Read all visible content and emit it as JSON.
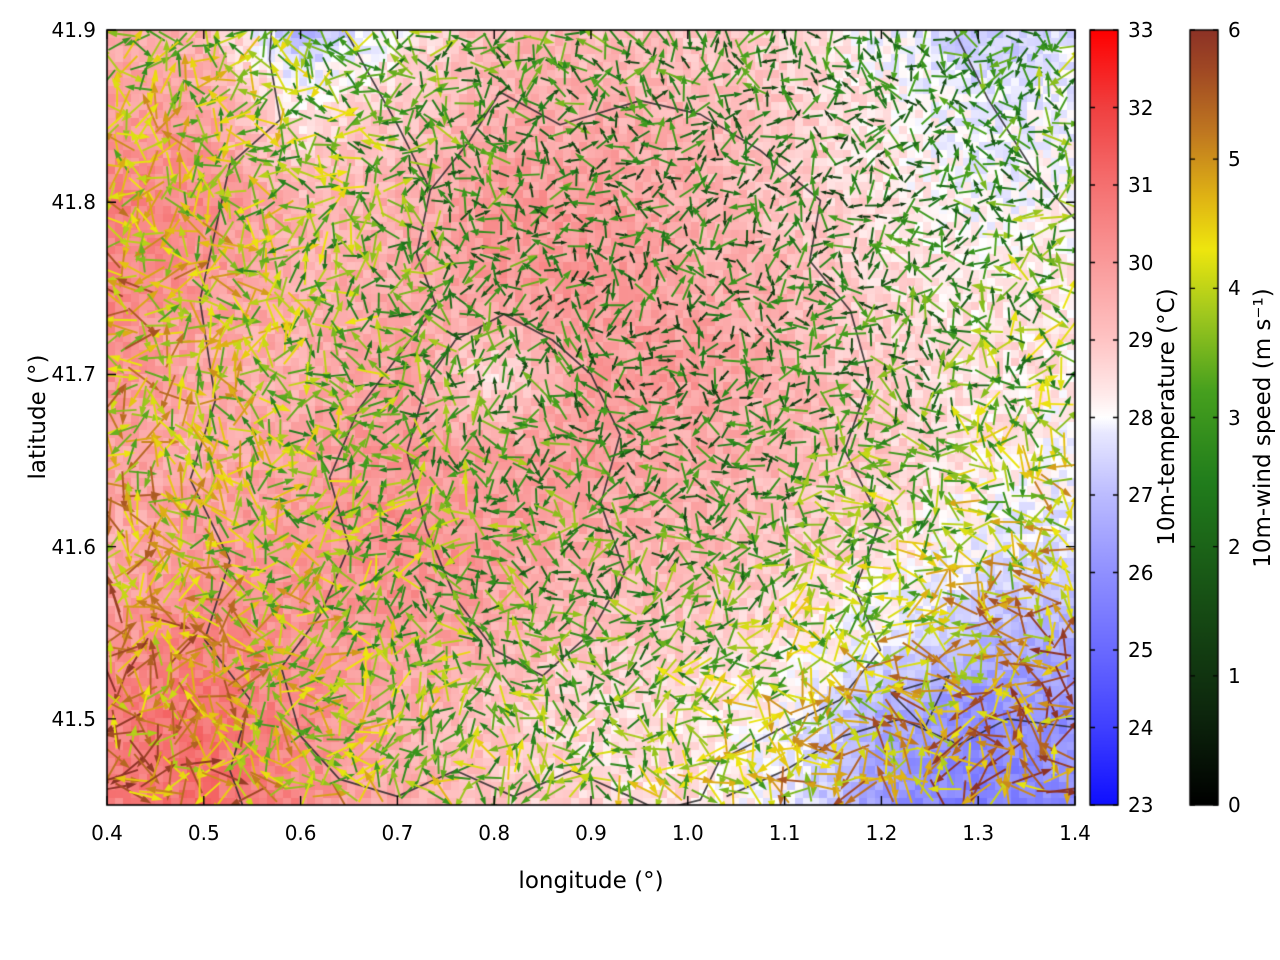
{
  "page": {
    "background": "#ffffff"
  },
  "chart_data": {
    "type": "heatmap",
    "subtype": "temperature field with wind vector overlay and boundary contours",
    "title": "",
    "xlabel": "longitude (°)",
    "ylabel": "latitude (°)",
    "xlim": [
      0.4,
      1.4
    ],
    "ylim": [
      41.45,
      41.9
    ],
    "x_tick_labels": [
      "0.4",
      "0.5",
      "0.6",
      "0.7",
      "0.8",
      "0.9",
      "1.0",
      "1.1",
      "1.2",
      "1.3",
      "1.4"
    ],
    "y_tick_labels": [
      "41.5",
      "41.6",
      "41.7",
      "41.8",
      "41.9"
    ],
    "grid_lon": [
      0.4,
      0.5,
      0.6,
      0.7,
      0.8,
      0.9,
      1.0,
      1.1,
      1.2,
      1.3,
      1.4
    ],
    "grid_lat": [
      41.9,
      41.85,
      41.8,
      41.75,
      41.7,
      41.65,
      41.6,
      41.55,
      41.5,
      41.45
    ],
    "temperature_c": [
      [
        29.6,
        29.4,
        26.8,
        28.2,
        29.4,
        29.2,
        29.0,
        28.6,
        28.0,
        27.2,
        27.6
      ],
      [
        30.0,
        29.8,
        28.4,
        29.0,
        29.6,
        29.6,
        29.4,
        29.0,
        28.4,
        27.8,
        27.9
      ],
      [
        30.6,
        30.4,
        29.4,
        29.5,
        30.0,
        30.0,
        29.6,
        29.0,
        28.5,
        28.0,
        28.1
      ],
      [
        30.5,
        30.0,
        29.5,
        29.6,
        30.0,
        30.1,
        29.7,
        29.4,
        28.6,
        28.4,
        28.4
      ],
      [
        30.2,
        29.6,
        29.5,
        29.9,
        28.6,
        29.9,
        30.0,
        29.5,
        28.9,
        28.5,
        28.4
      ],
      [
        29.8,
        29.6,
        29.9,
        30.1,
        29.9,
        30.0,
        29.6,
        29.4,
        28.9,
        28.4,
        28.0
      ],
      [
        29.6,
        30.0,
        30.0,
        30.4,
        30.0,
        29.6,
        29.4,
        29.0,
        28.5,
        27.9,
        27.5
      ],
      [
        30.0,
        30.5,
        30.1,
        30.0,
        29.6,
        29.1,
        29.0,
        28.6,
        27.9,
        27.0,
        26.6
      ],
      [
        30.6,
        31.0,
        30.4,
        29.6,
        29.0,
        28.6,
        28.5,
        28.0,
        26.6,
        25.8,
        26.0
      ],
      [
        30.6,
        31.0,
        30.4,
        29.5,
        29.0,
        28.6,
        28.5,
        27.9,
        26.2,
        25.5,
        26.0
      ]
    ],
    "wind_speed_ms": [
      [
        3.6,
        3.9,
        3.4,
        3.0,
        2.9,
        2.6,
        2.5,
        2.4,
        2.2,
        2.6,
        3.4
      ],
      [
        4.0,
        3.9,
        3.5,
        3.0,
        2.6,
        2.4,
        2.2,
        2.1,
        2.1,
        2.5,
        3.0
      ],
      [
        4.4,
        4.0,
        3.5,
        3.0,
        2.5,
        2.1,
        2.0,
        2.0,
        2.1,
        2.5,
        3.0
      ],
      [
        4.8,
        4.1,
        3.5,
        3.0,
        2.5,
        2.1,
        2.0,
        2.0,
        2.4,
        2.9,
        3.4
      ],
      [
        4.6,
        4.0,
        3.5,
        3.0,
        2.5,
        2.1,
        2.0,
        2.1,
        2.5,
        3.0,
        3.5
      ],
      [
        4.5,
        4.0,
        3.6,
        3.1,
        2.9,
        2.5,
        2.1,
        2.5,
        3.0,
        3.5,
        4.0
      ],
      [
        4.6,
        4.1,
        3.6,
        3.4,
        3.0,
        2.6,
        2.5,
        3.0,
        3.5,
        4.0,
        4.5
      ],
      [
        5.0,
        4.5,
        4.0,
        3.5,
        3.0,
        2.9,
        3.0,
        3.5,
        4.0,
        4.5,
        5.0
      ],
      [
        5.1,
        4.6,
        4.0,
        3.6,
        3.4,
        3.0,
        3.5,
        4.0,
        4.5,
        5.0,
        5.1
      ],
      [
        5.4,
        5.0,
        4.5,
        4.0,
        3.5,
        3.5,
        4.0,
        4.5,
        5.0,
        5.1,
        5.4
      ]
    ],
    "temperature_colorbar": {
      "label": "10m-temperature (°C)",
      "min": 23,
      "max": 33,
      "ticks": [
        23,
        24,
        25,
        26,
        27,
        28,
        29,
        30,
        31,
        32,
        33
      ],
      "stops": [
        [
          23,
          "#0f0fff"
        ],
        [
          24,
          "#4040ff"
        ],
        [
          25,
          "#6a6aff"
        ],
        [
          26,
          "#9090ff"
        ],
        [
          27,
          "#bcbcff"
        ],
        [
          27.8,
          "#e8e8ff"
        ],
        [
          28,
          "#ffffff"
        ],
        [
          28.3,
          "#ffeaea"
        ],
        [
          29,
          "#ffc4c4"
        ],
        [
          30,
          "#fa9a9a"
        ],
        [
          31,
          "#f57070"
        ],
        [
          32,
          "#f04040"
        ],
        [
          33,
          "#ff0000"
        ]
      ]
    },
    "wind_colorbar": {
      "label": "10m-wind speed (m s⁻¹)",
      "min": 0,
      "max": 6,
      "ticks": [
        0,
        1,
        2,
        3,
        4,
        5,
        6
      ],
      "stops": [
        [
          0,
          "#000000"
        ],
        [
          0.7,
          "#0d260d"
        ],
        [
          1.5,
          "#164b14"
        ],
        [
          2.5,
          "#217d1c"
        ],
        [
          3.2,
          "#46a01e"
        ],
        [
          3.8,
          "#a0c81e"
        ],
        [
          4.3,
          "#eee60e"
        ],
        [
          4.7,
          "#e0b414"
        ],
        [
          5.2,
          "#c07820"
        ],
        [
          5.7,
          "#a04824"
        ],
        [
          6,
          "#8c3226"
        ]
      ]
    },
    "boundaries": [
      [
        [
          0.57,
          41.9
        ],
        [
          0.568,
          41.883
        ],
        [
          0.579,
          41.848
        ],
        [
          0.527,
          41.822
        ],
        [
          0.496,
          41.743
        ],
        [
          0.512,
          41.685
        ],
        [
          0.486,
          41.639
        ],
        [
          0.527,
          41.592
        ],
        [
          0.501,
          41.546
        ],
        [
          0.548,
          41.511
        ],
        [
          0.527,
          41.47
        ],
        [
          0.54,
          41.45
        ]
      ],
      [
        [
          0.806,
          41.864
        ],
        [
          0.868,
          41.845
        ],
        [
          0.951,
          41.859
        ],
        [
          1.013,
          41.851
        ],
        [
          1.075,
          41.83
        ],
        [
          1.137,
          41.801
        ],
        [
          1.126,
          41.766
        ],
        [
          1.168,
          41.737
        ],
        [
          1.188,
          41.697
        ],
        [
          1.162,
          41.656
        ],
        [
          1.199,
          41.615
        ],
        [
          1.173,
          41.575
        ],
        [
          1.199,
          41.54
        ],
        [
          1.157,
          41.511
        ],
        [
          1.095,
          41.494
        ],
        [
          1.033,
          41.476
        ],
        [
          1.013,
          41.453
        ],
        [
          0.97,
          41.447
        ]
      ],
      [
        [
          0.806,
          41.864
        ],
        [
          0.775,
          41.836
        ],
        [
          0.734,
          41.807
        ],
        [
          0.72,
          41.77
        ],
        [
          0.74,
          41.74
        ],
        [
          0.7,
          41.71
        ],
        [
          0.66,
          41.68
        ],
        [
          0.63,
          41.64
        ],
        [
          0.65,
          41.6
        ],
        [
          0.62,
          41.56
        ],
        [
          0.58,
          41.53
        ],
        [
          0.6,
          41.49
        ],
        [
          0.64,
          41.465
        ],
        [
          0.7,
          41.455
        ],
        [
          0.76,
          41.47
        ],
        [
          0.82,
          41.455
        ],
        [
          0.88,
          41.47
        ],
        [
          0.94,
          41.455
        ],
        [
          0.97,
          41.447
        ]
      ],
      [
        [
          0.646,
          41.9
        ],
        [
          0.67,
          41.875
        ],
        [
          0.7,
          41.845
        ],
        [
          0.734,
          41.807
        ]
      ],
      [
        [
          0.76,
          41.72
        ],
        [
          0.81,
          41.735
        ],
        [
          0.86,
          41.72
        ],
        [
          0.9,
          41.7
        ],
        [
          0.93,
          41.665
        ],
        [
          0.91,
          41.625
        ],
        [
          0.935,
          41.585
        ],
        [
          0.9,
          41.55
        ],
        [
          0.85,
          41.525
        ],
        [
          0.8,
          41.54
        ],
        [
          0.76,
          41.57
        ],
        [
          0.73,
          41.61
        ],
        [
          0.71,
          41.655
        ],
        [
          0.73,
          41.695
        ],
        [
          0.76,
          41.72
        ]
      ],
      [
        [
          1.04,
          41.455
        ],
        [
          1.1,
          41.47
        ],
        [
          1.16,
          41.49
        ],
        [
          1.22,
          41.5
        ],
        [
          1.28,
          41.485
        ],
        [
          1.33,
          41.5
        ],
        [
          1.4,
          41.495
        ]
      ],
      [
        [
          1.21,
          41.515
        ],
        [
          1.27,
          41.525
        ],
        [
          1.245,
          41.495
        ],
        [
          1.21,
          41.515
        ]
      ],
      [
        [
          1.275,
          41.9
        ],
        [
          1.31,
          41.86
        ],
        [
          1.355,
          41.82
        ],
        [
          1.4,
          41.79
        ]
      ]
    ]
  }
}
